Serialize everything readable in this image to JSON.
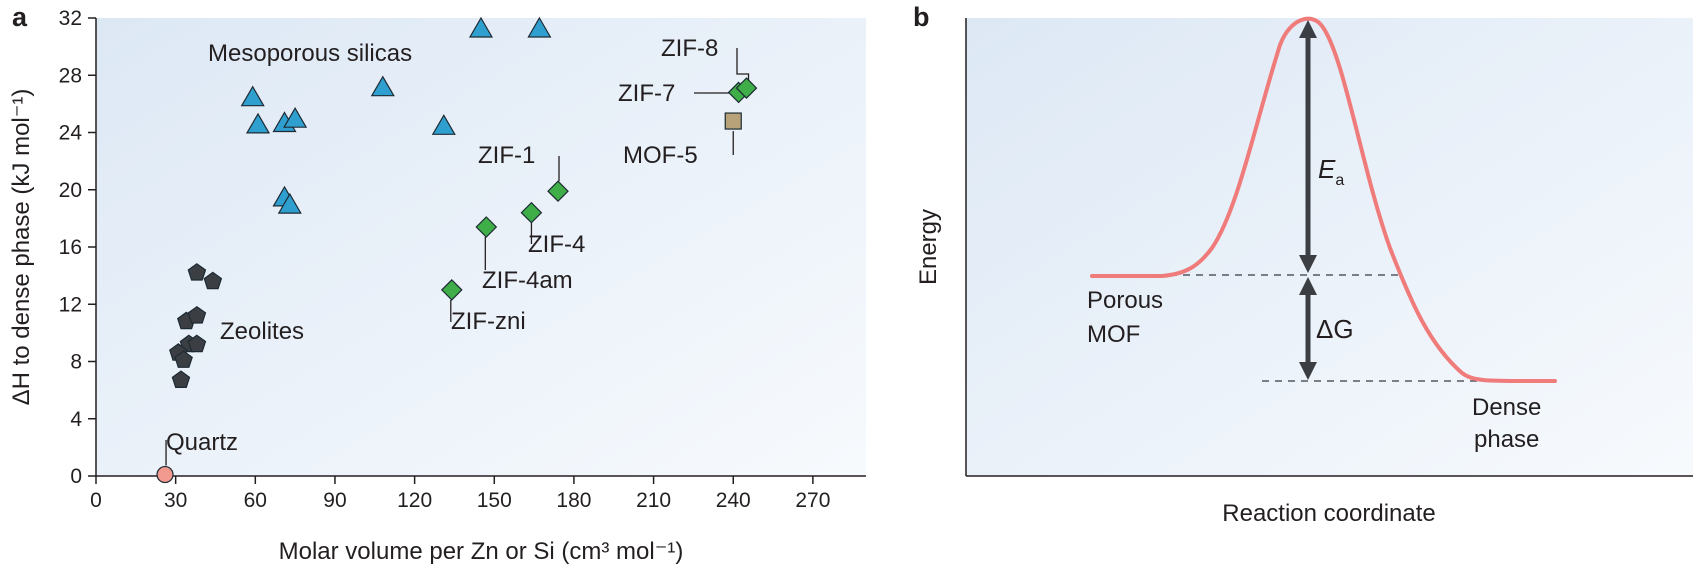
{
  "chart_data": [
    {
      "panel": "a",
      "type": "scatter",
      "xlabel": "Molar volume per Zn or Si (cm³ mol⁻¹)",
      "ylabel": "ΔH to dense phase (kJ mol⁻¹)",
      "xlim": [
        0,
        290
      ],
      "ylim": [
        0,
        32
      ],
      "xticks": [
        0,
        30,
        60,
        90,
        120,
        150,
        180,
        210,
        240,
        270
      ],
      "yticks": [
        0,
        4,
        8,
        12,
        16,
        20,
        24,
        28,
        32
      ],
      "grid": false,
      "colors": {
        "silicas": "#2f9fd0",
        "zeolites": "#3b3f44",
        "zifs": "#3fae49",
        "quartz": "#f29a8f",
        "mof5": "#b8a27a"
      },
      "groups": [
        {
          "name": "Mesoporous silicas",
          "marker": "triangle-icon",
          "color_key": "silicas",
          "points": [
            {
              "x": 145,
              "y": 31.3
            },
            {
              "x": 167,
              "y": 31.3
            },
            {
              "x": 59,
              "y": 26.5
            },
            {
              "x": 108,
              "y": 27.2
            },
            {
              "x": 61,
              "y": 24.6
            },
            {
              "x": 71,
              "y": 24.7
            },
            {
              "x": 75,
              "y": 25.0
            },
            {
              "x": 131,
              "y": 24.5
            },
            {
              "x": 71,
              "y": 19.5
            },
            {
              "x": 73,
              "y": 19.0
            }
          ]
        },
        {
          "name": "Zeolites",
          "marker": "pentagon-icon",
          "color_key": "zeolites",
          "points": [
            {
              "x": 38,
              "y": 14.2
            },
            {
              "x": 44,
              "y": 13.6
            },
            {
              "x": 34,
              "y": 10.8
            },
            {
              "x": 38,
              "y": 11.2
            },
            {
              "x": 35,
              "y": 9.2
            },
            {
              "x": 38,
              "y": 9.2
            },
            {
              "x": 31,
              "y": 8.6
            },
            {
              "x": 33,
              "y": 8.1
            },
            {
              "x": 32,
              "y": 6.7
            }
          ]
        },
        {
          "name": "ZIFs",
          "marker": "diamond-icon",
          "color_key": "zifs",
          "points": [
            {
              "x": 174,
              "y": 19.9,
              "label": "ZIF-1"
            },
            {
              "x": 164,
              "y": 18.4,
              "label": "ZIF-4"
            },
            {
              "x": 147,
              "y": 17.4,
              "label": "ZIF-4am"
            },
            {
              "x": 134,
              "y": 13.0,
              "label": "ZIF-zni"
            },
            {
              "x": 242,
              "y": 26.8,
              "label": "ZIF-7"
            },
            {
              "x": 245,
              "y": 27.1,
              "label": "ZIF-8"
            }
          ]
        },
        {
          "name": "Quartz",
          "marker": "circle-icon",
          "color_key": "quartz",
          "points": [
            {
              "x": 26,
              "y": 0.1,
              "label": "Quartz"
            }
          ]
        },
        {
          "name": "MOF-5",
          "marker": "square-icon",
          "color_key": "mof5",
          "points": [
            {
              "x": 240,
              "y": 24.8,
              "label": "MOF-5"
            }
          ]
        }
      ],
      "annotations": {
        "silicas": "Mesoporous silicas",
        "zeolites": "Zeolites",
        "quartz": "Quartz",
        "zif1": "ZIF-1",
        "zif4": "ZIF-4",
        "zif4am": "ZIF-4am",
        "zifzni": "ZIF-zni",
        "zif7": "ZIF-7",
        "zif8": "ZIF-8",
        "mof5": "MOF-5"
      }
    },
    {
      "panel": "b",
      "type": "line",
      "xlabel": "Reaction coordinate",
      "ylabel": "Energy",
      "curve_color": "#ef7b7b",
      "levels": {
        "porous_mof": 0.3,
        "transition_state": 1.0,
        "dense_phase": 0.0
      },
      "annotations": {
        "porous_1": "Porous",
        "porous_2": "MOF",
        "dense_1": "Dense",
        "dense_2": "phase",
        "ea_main": "E",
        "ea_sub": "a",
        "dg": "ΔG"
      }
    }
  ],
  "panels": {
    "a": "a",
    "b": "b"
  }
}
